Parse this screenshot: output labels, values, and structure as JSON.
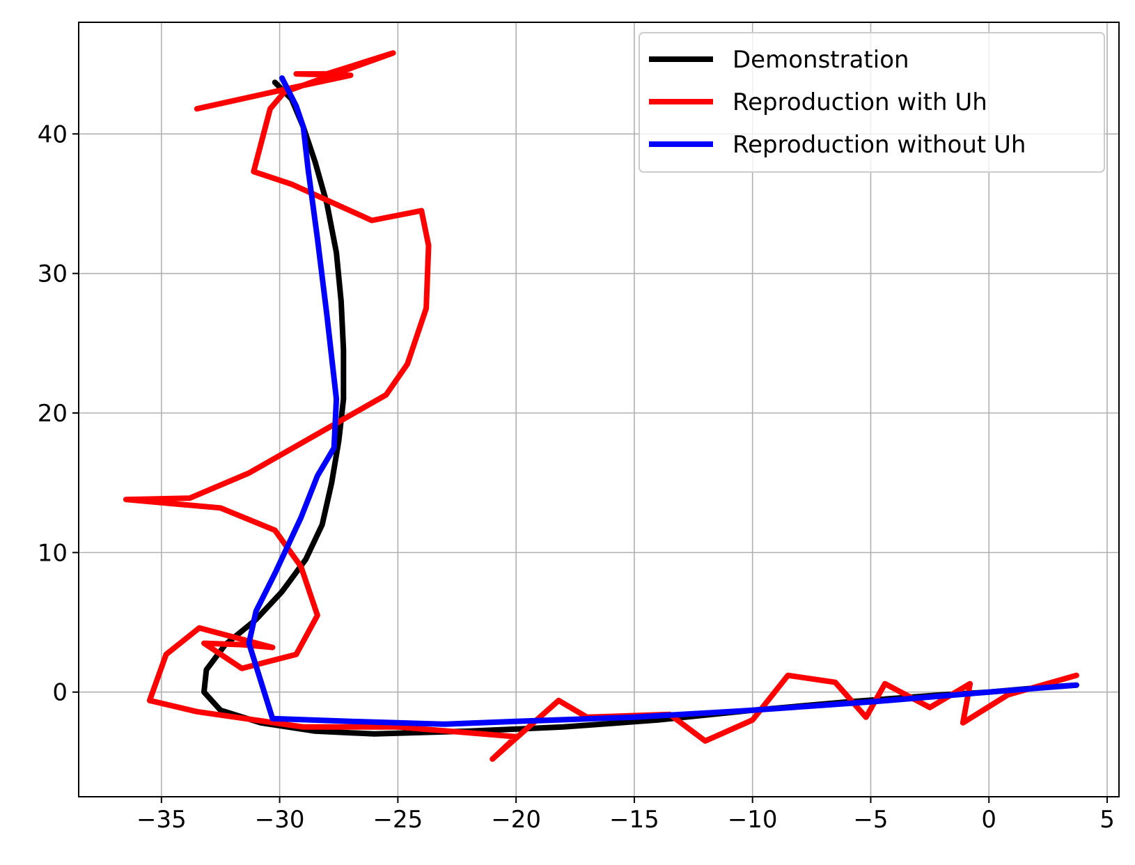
{
  "chart_data": {
    "type": "line",
    "xlim": [
      -38.5,
      5.5
    ],
    "ylim": [
      -7.5,
      48
    ],
    "x_ticks": [
      -35,
      -30,
      -25,
      -20,
      -15,
      -10,
      -5,
      0,
      5
    ],
    "y_ticks": [
      0,
      10,
      20,
      30,
      40
    ],
    "x_tick_labels": [
      "−35",
      "−30",
      "−25",
      "−20",
      "−15",
      "−10",
      "−5",
      "0",
      "5"
    ],
    "y_tick_labels": [
      "0",
      "10",
      "20",
      "30",
      "40"
    ],
    "grid": true,
    "legend_position": "upper right",
    "series": [
      {
        "name": "Demonstration",
        "color": "#000000",
        "points": [
          [
            -30.2,
            43.7
          ],
          [
            -29.5,
            42.5
          ],
          [
            -29.0,
            40.5
          ],
          [
            -28.5,
            38.0
          ],
          [
            -28.0,
            35.0
          ],
          [
            -27.6,
            31.5
          ],
          [
            -27.4,
            28.0
          ],
          [
            -27.3,
            24.5
          ],
          [
            -27.3,
            21.0
          ],
          [
            -27.5,
            18.0
          ],
          [
            -27.8,
            15.0
          ],
          [
            -28.2,
            12.0
          ],
          [
            -28.9,
            9.5
          ],
          [
            -29.9,
            7.2
          ],
          [
            -31.0,
            5.2
          ],
          [
            -32.3,
            3.4
          ],
          [
            -33.1,
            1.6
          ],
          [
            -33.2,
            0.0
          ],
          [
            -32.5,
            -1.3
          ],
          [
            -30.8,
            -2.2
          ],
          [
            -28.5,
            -2.8
          ],
          [
            -26.0,
            -3.0
          ],
          [
            -22.0,
            -2.8
          ],
          [
            -18.0,
            -2.5
          ],
          [
            -14.0,
            -2.0
          ],
          [
            -10.0,
            -1.3
          ],
          [
            -6.0,
            -0.7
          ],
          [
            -2.0,
            -0.2
          ],
          [
            0.0,
            0.0
          ],
          [
            2.0,
            0.3
          ],
          [
            3.7,
            0.5
          ]
        ]
      },
      {
        "name": "Reproduction with Uh",
        "color": "#ff0000",
        "points": [
          [
            -33.5,
            41.8
          ],
          [
            -29.5,
            43.3
          ],
          [
            -27.0,
            44.2
          ],
          [
            -29.3,
            44.3
          ],
          [
            -28.0,
            44.3
          ],
          [
            -25.2,
            45.8
          ],
          [
            -29.8,
            43.0
          ],
          [
            -30.4,
            41.8
          ],
          [
            -31.1,
            37.3
          ],
          [
            -29.5,
            36.4
          ],
          [
            -26.1,
            33.8
          ],
          [
            -24.0,
            34.5
          ],
          [
            -23.7,
            32.0
          ],
          [
            -23.8,
            27.5
          ],
          [
            -24.6,
            23.5
          ],
          [
            -25.5,
            21.3
          ],
          [
            -31.3,
            15.7
          ],
          [
            -33.8,
            13.9
          ],
          [
            -36.5,
            13.8
          ],
          [
            -32.5,
            13.2
          ],
          [
            -30.2,
            11.6
          ],
          [
            -29.1,
            9.0
          ],
          [
            -28.4,
            5.5
          ],
          [
            -29.3,
            2.7
          ],
          [
            -31.6,
            1.7
          ],
          [
            -33.2,
            3.5
          ],
          [
            -31.6,
            3.4
          ],
          [
            -30.3,
            3.2
          ],
          [
            -33.4,
            4.6
          ],
          [
            -34.8,
            2.7
          ],
          [
            -35.5,
            -0.6
          ],
          [
            -33.5,
            -1.4
          ],
          [
            -29.0,
            -2.5
          ],
          [
            -25.0,
            -2.5
          ],
          [
            -20.0,
            -3.2
          ],
          [
            -21.0,
            -4.8
          ],
          [
            -18.2,
            -0.6
          ],
          [
            -17.0,
            -1.8
          ],
          [
            -13.5,
            -1.6
          ],
          [
            -12.0,
            -3.5
          ],
          [
            -10.0,
            -2.0
          ],
          [
            -8.5,
            1.2
          ],
          [
            -6.5,
            0.7
          ],
          [
            -5.2,
            -1.8
          ],
          [
            -4.4,
            0.6
          ],
          [
            -2.5,
            -1.1
          ],
          [
            -0.8,
            0.6
          ],
          [
            -1.1,
            -2.2
          ],
          [
            0.8,
            -0.2
          ],
          [
            3.7,
            1.2
          ]
        ]
      },
      {
        "name": "Reproduction without Uh",
        "color": "#0000ff",
        "points": [
          [
            -29.9,
            44.0
          ],
          [
            -29.3,
            42.0
          ],
          [
            -29.0,
            40.5
          ],
          [
            -28.8,
            37.5
          ],
          [
            -28.4,
            32.5
          ],
          [
            -28.0,
            27.0
          ],
          [
            -27.6,
            21.0
          ],
          [
            -27.7,
            17.5
          ],
          [
            -28.4,
            15.5
          ],
          [
            -29.1,
            12.5
          ],
          [
            -30.2,
            8.5
          ],
          [
            -31.0,
            5.8
          ],
          [
            -31.3,
            3.5
          ],
          [
            -30.3,
            -1.9
          ],
          [
            -27.0,
            -2.1
          ],
          [
            -23.0,
            -2.3
          ],
          [
            -20.0,
            -2.1
          ],
          [
            -15.0,
            -1.8
          ],
          [
            -10.0,
            -1.3
          ],
          [
            -5.0,
            -0.7
          ],
          [
            0.0,
            0.0
          ],
          [
            3.7,
            0.5
          ]
        ]
      }
    ]
  }
}
